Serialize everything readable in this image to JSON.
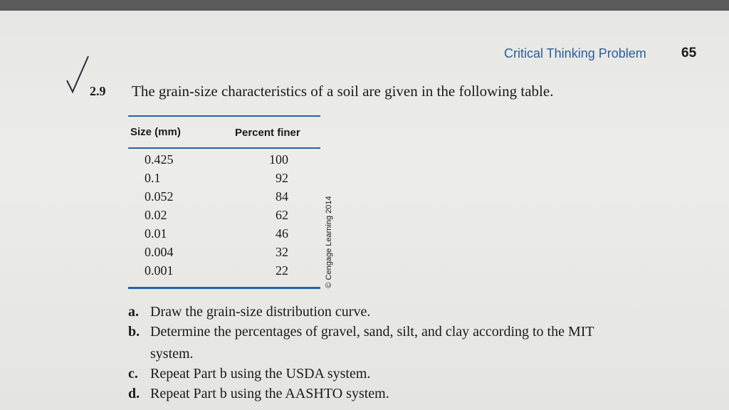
{
  "header": {
    "section": "Critical Thinking Problem",
    "page": "65"
  },
  "problem": {
    "number": "2.9",
    "text": "The grain-size characteristics of a soil are given in the following table."
  },
  "table": {
    "columns": [
      "Size (mm)",
      "Percent finer"
    ],
    "rows": [
      [
        "0.425",
        "100"
      ],
      [
        "0.1",
        "92"
      ],
      [
        "0.052",
        "84"
      ],
      [
        "0.02",
        "62"
      ],
      [
        "0.01",
        "46"
      ],
      [
        "0.004",
        "32"
      ],
      [
        "0.001",
        "22"
      ]
    ],
    "credit": "© Cengage Learning 2014"
  },
  "parts": [
    {
      "label": "a.",
      "lines": [
        "Draw the grain-size distribution curve."
      ]
    },
    {
      "label": "b.",
      "lines": [
        "Determine the percentages of gravel, sand, silt, and clay according to the MIT",
        "system."
      ]
    },
    {
      "label": "c.",
      "lines": [
        "Repeat Part b using the USDA system."
      ]
    },
    {
      "label": "d.",
      "lines": [
        "Repeat Part b using the AASHTO system."
      ]
    }
  ]
}
